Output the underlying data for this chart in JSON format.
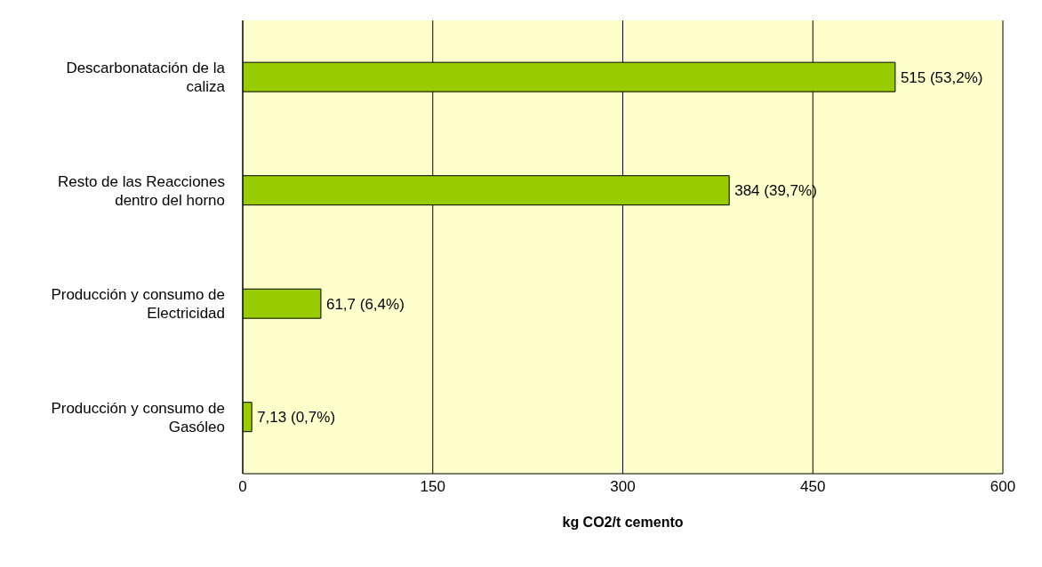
{
  "chart_data": {
    "type": "bar",
    "orientation": "horizontal",
    "categories": [
      "Descarbonatación de la caliza",
      "Resto de las Reacciones dentro del horno",
      "Producción y consumo de Electricidad",
      "Producción y consumo de Gasóleo"
    ],
    "values": [
      515,
      384,
      61.7,
      7.13
    ],
    "value_labels": [
      "515  (53,2%)",
      "384  (39,7%)",
      "61,7  (6,4%)",
      "7,13  (0,7%)"
    ],
    "color": "#99cc00",
    "xlabel": "kg CO2/t cemento",
    "xlim": [
      0,
      600
    ],
    "xticks": [
      0,
      150,
      300,
      450,
      600
    ],
    "grid": "x"
  }
}
